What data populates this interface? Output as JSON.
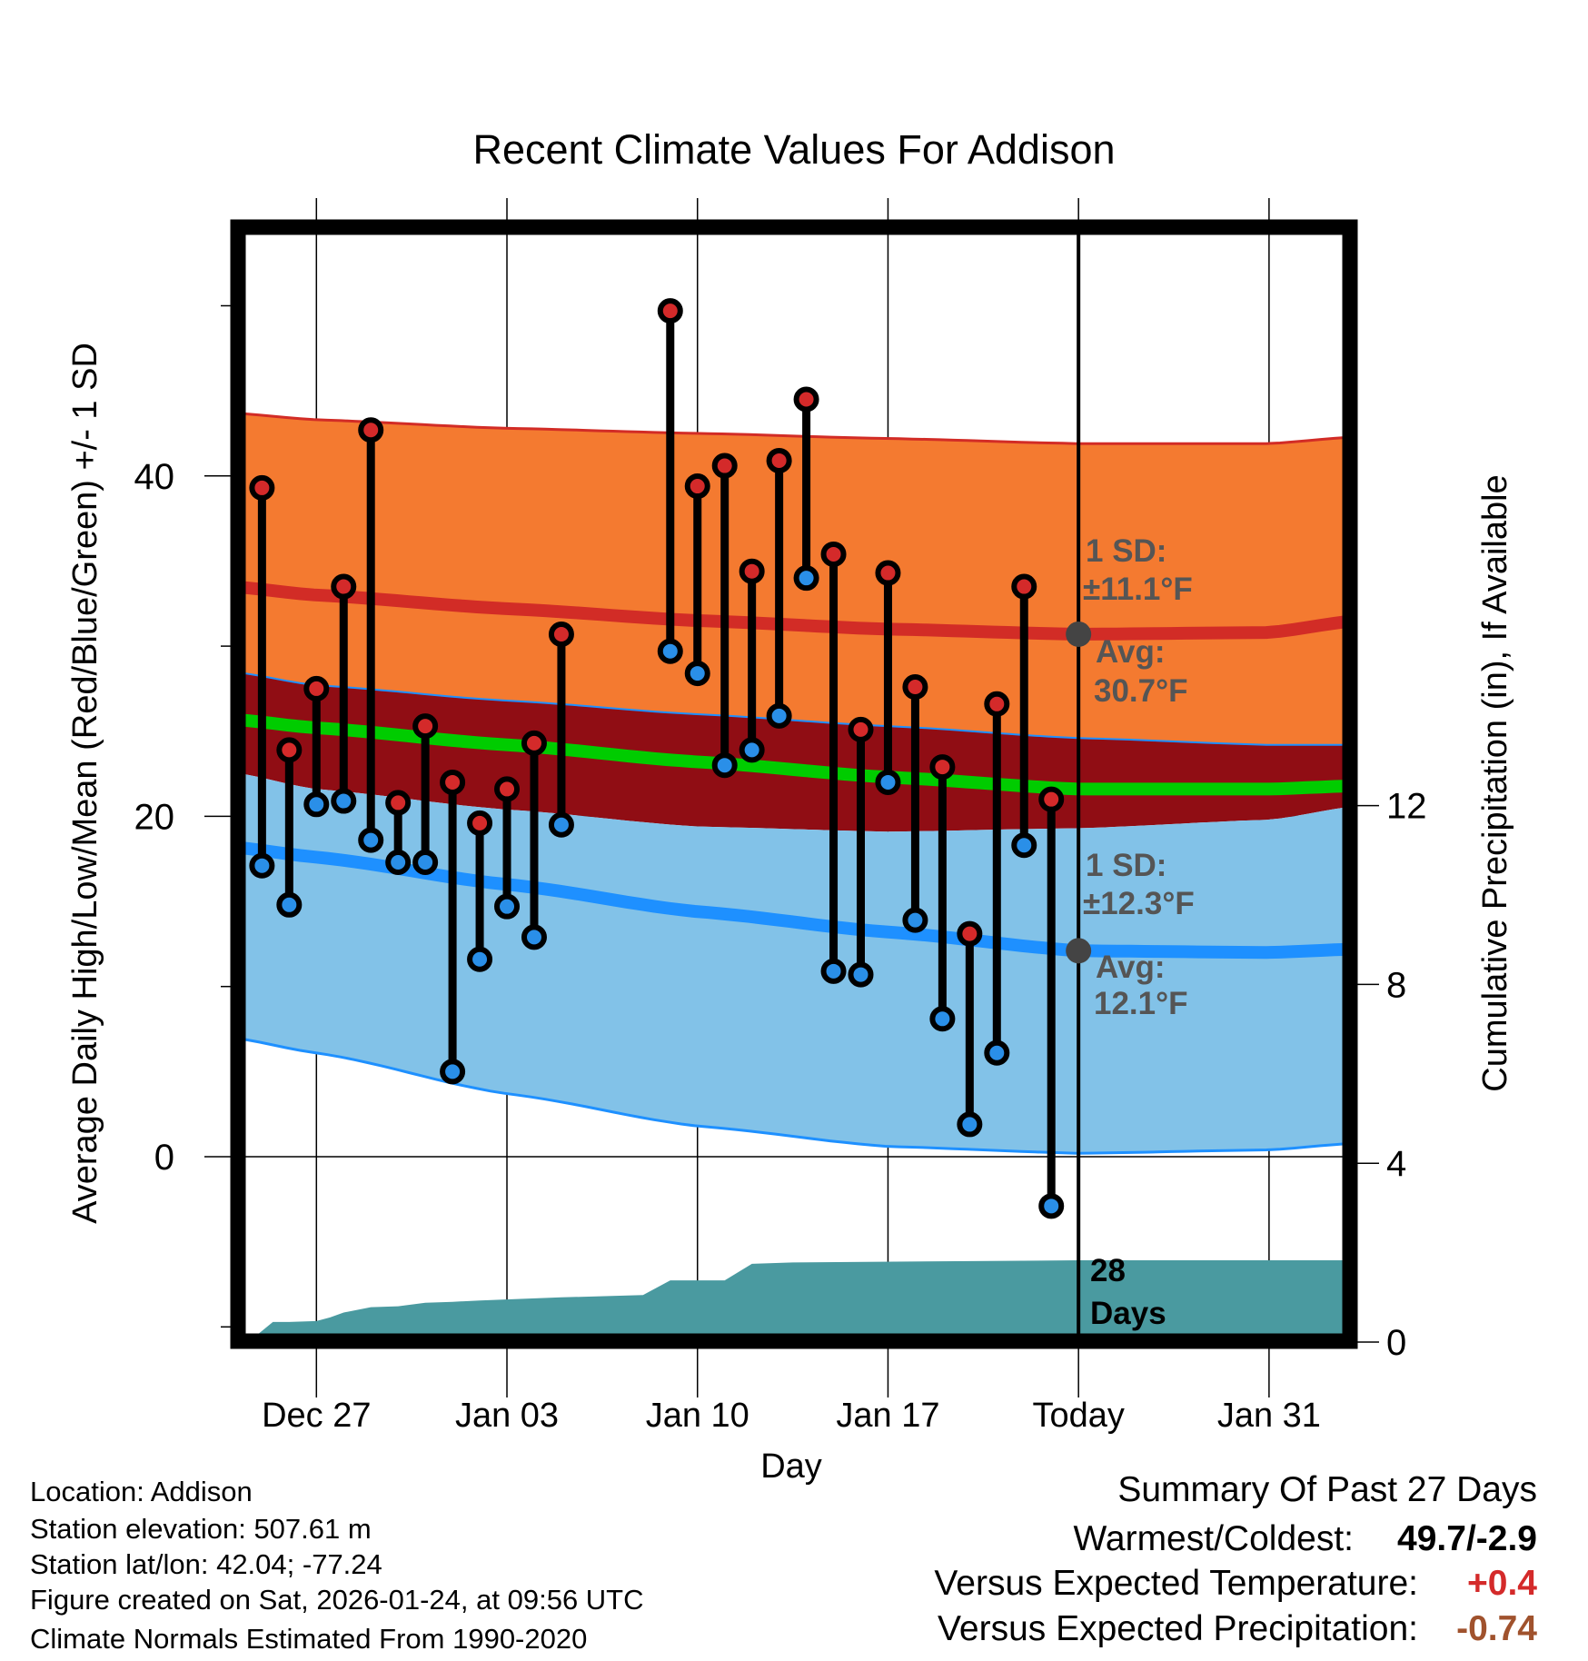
{
  "chart_data": {
    "type": "line",
    "title": "Recent Climate Values For Addison",
    "xlabel": "Day",
    "ylabel": "Average Daily High/Low/Mean (Red/Blue/Green) +/- 1 SD",
    "ylabel_right": "Cumulative Precipitation (in), If Available",
    "ylim": [
      -10,
      53
    ],
    "ylim_right": [
      0,
      24
    ],
    "grid": true,
    "x_ticks": [
      {
        "day": 0,
        "label": "Dec 27"
      },
      {
        "day": 7,
        "label": "Jan 03"
      },
      {
        "day": 14,
        "label": "Jan 10"
      },
      {
        "day": 21,
        "label": "Jan 17"
      },
      {
        "day": 28,
        "label": "Today"
      },
      {
        "day": 35,
        "label": "Jan 31"
      }
    ],
    "y_ticks_left": [
      0,
      20,
      40
    ],
    "y_ticks_right": [
      0,
      4,
      8,
      12
    ],
    "x_range_days": [
      -3.1,
      38.2
    ],
    "observed": {
      "days": [
        -2,
        -1,
        0,
        1,
        2,
        3,
        4,
        5,
        6,
        7,
        8,
        9,
        13,
        14,
        15,
        16,
        17,
        18,
        19,
        20,
        21,
        22,
        23,
        24,
        25,
        26,
        27
      ],
      "high": [
        39.3,
        23.9,
        27.5,
        33.5,
        42.7,
        20.8,
        25.3,
        22.0,
        19.6,
        21.6,
        24.3,
        30.7,
        49.7,
        39.4,
        40.6,
        34.4,
        40.9,
        44.5,
        35.4,
        25.1,
        34.3,
        27.6,
        22.9,
        13.1,
        26.6,
        33.5,
        21.0
      ],
      "low": [
        17.1,
        14.8,
        20.7,
        20.9,
        18.6,
        17.3,
        17.3,
        5.0,
        11.6,
        14.7,
        12.9,
        19.5,
        29.7,
        28.4,
        23.0,
        23.9,
        25.9,
        34.0,
        10.9,
        10.7,
        22.0,
        13.9,
        8.1,
        1.9,
        6.1,
        18.3,
        -2.9
      ]
    },
    "normals": {
      "days": [
        -3.1,
        0,
        7,
        14,
        21,
        28,
        35,
        38.2
      ],
      "high_plus_sd": [
        43.7,
        43.3,
        42.8,
        42.5,
        42.2,
        41.9,
        41.9,
        42.3
      ],
      "high_avg": [
        33.5,
        33.0,
        32.2,
        31.5,
        31.0,
        30.7,
        30.8,
        31.5
      ],
      "dark_band_top": [
        28.5,
        27.7,
        26.8,
        26.0,
        25.3,
        24.6,
        24.2,
        24.2
      ],
      "mean_avg": [
        25.7,
        25.2,
        24.2,
        23.2,
        22.3,
        21.6,
        21.6,
        21.8
      ],
      "low_plus_sd": [
        22.6,
        21.6,
        20.4,
        19.4,
        19.1,
        19.3,
        19.8,
        20.6
      ],
      "low_avg": [
        18.2,
        17.6,
        16.0,
        14.4,
        13.2,
        12.1,
        12.0,
        12.2
      ],
      "low_minus_sd": [
        7.0,
        6.1,
        3.7,
        1.8,
        0.6,
        0.2,
        0.4,
        0.8
      ]
    },
    "precip": {
      "days": [
        -2.5,
        -1.6,
        -1,
        0,
        0.5,
        1,
        2,
        3,
        4,
        5,
        6,
        9,
        12,
        13,
        14,
        15,
        16,
        17,
        17.5,
        28,
        38.2
      ],
      "cumulative": [
        0,
        0.45,
        0.45,
        0.47,
        0.55,
        0.66,
        0.78,
        0.8,
        0.88,
        0.9,
        0.93,
        1.0,
        1.05,
        1.38,
        1.38,
        1.38,
        1.75,
        1.77,
        1.78,
        1.83,
        1.83
      ]
    },
    "annotations": {
      "high_sd_label": "1 SD:",
      "high_sd_value": "±11.1°F",
      "high_avg_label": "Avg:",
      "high_avg_value": "30.7°F",
      "low_sd_label": "1 SD:",
      "low_sd_value": "±12.3°F",
      "low_avg_label": "Avg:",
      "low_avg_value": "12.1°F",
      "days_count": "28",
      "days_word": "Days"
    },
    "colors": {
      "high_band": "#f47a30",
      "high_line": "#d22c26",
      "dark_band": "#900d14",
      "mean_line": "#00cc00",
      "low_band": "#82c2e8",
      "low_line": "#1e90ff",
      "precip": "#4a9aa0",
      "high_dot": "#d42a2a",
      "low_dot": "#2a8fe8"
    }
  },
  "footer": {
    "location": "Location: Addison",
    "elevation": "Station elevation: 507.61 m",
    "latlon": "Station lat/lon: 42.04; -77.24",
    "created": "Figure created on Sat, 2026-01-24, at 09:56 UTC",
    "normals": "Climate Normals Estimated From 1990-2020"
  },
  "summary": {
    "title": "Summary Of Past 27 Days",
    "warmest_coldest_label": "Warmest/Coldest:",
    "warmest_coldest_value": "49.7/-2.9",
    "temp_label": "Versus Expected Temperature:",
    "temp_value": "+0.4",
    "precip_label": "Versus Expected Precipitation:",
    "precip_value": "-0.74",
    "temp_color": "#d42a2a",
    "precip_color": "#a0522d"
  }
}
